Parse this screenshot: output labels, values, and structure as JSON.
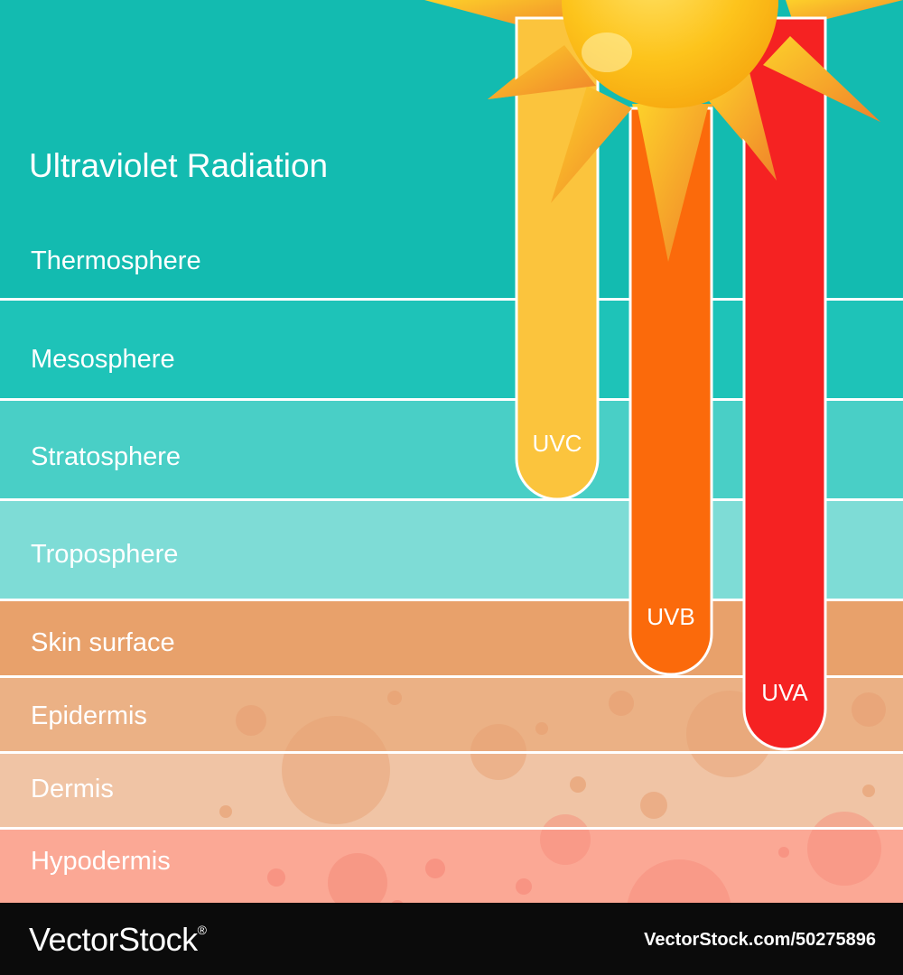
{
  "title": "Ultraviolet Radiation",
  "layers": [
    {
      "label": "Thermosphere",
      "color": "#13bbb0"
    },
    {
      "label": "Mesosphere",
      "color": "#1ec3b8"
    },
    {
      "label": "Stratosphere",
      "color": "#49cfc6"
    },
    {
      "label": "Troposphere",
      "color": "#7edcd6"
    },
    {
      "label": "Skin surface",
      "color": "#e8a16b"
    },
    {
      "label": "Epidermis",
      "color": "#ebb185"
    },
    {
      "label": "Dermis",
      "color": "#f0c4a5"
    },
    {
      "label": "Hypodermis",
      "color": "#fba895"
    }
  ],
  "rays": [
    {
      "label": "UVC",
      "color": "#fbc43d",
      "reaches": "Stratosphere"
    },
    {
      "label": "UVB",
      "color": "#fb6a0b",
      "reaches": "Skin surface"
    },
    {
      "label": "UVA",
      "color": "#f52222",
      "reaches": "Epidermis"
    }
  ],
  "sun": {
    "icon": "sun-icon",
    "core_color": "#fdc41c",
    "ray_color": "#f79a1e"
  },
  "footer": {
    "brand": "VectorStock",
    "trademark": "®",
    "image_id": "VectorStock.com/50275896"
  }
}
